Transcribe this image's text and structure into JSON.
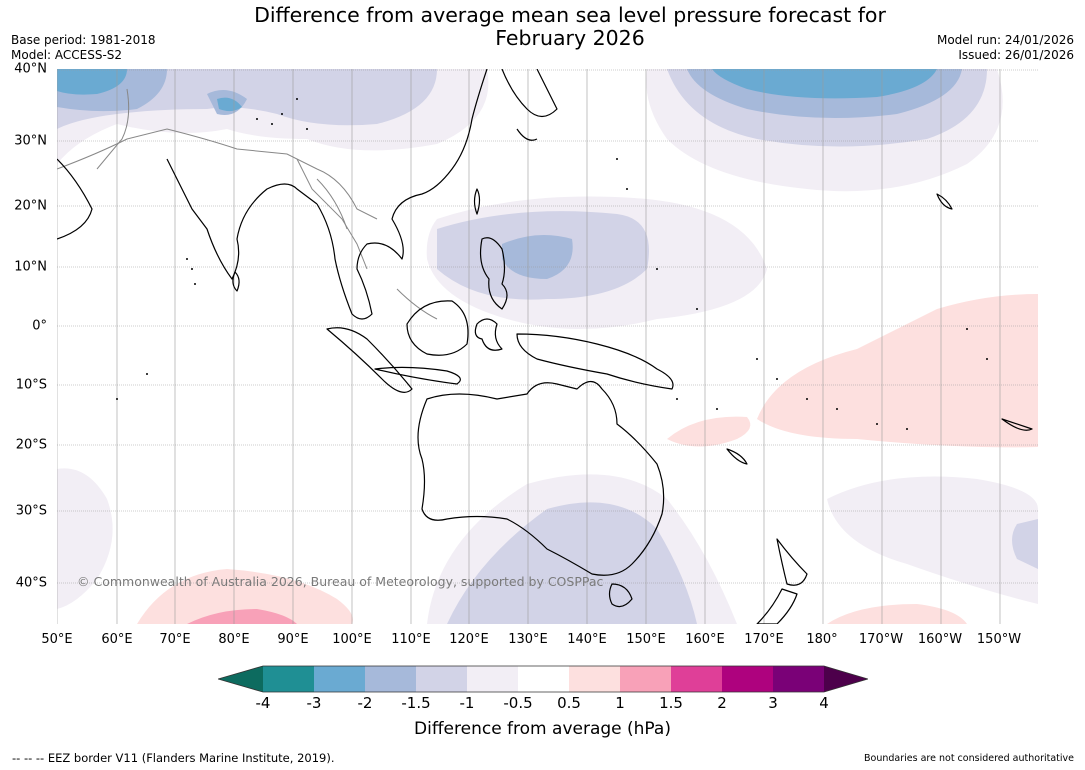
{
  "title": {
    "line1": "Difference from average mean sea level pressure forecast for",
    "line2": "February 2026"
  },
  "meta": {
    "base_period": "Base period: 1981-2018",
    "model": "Model: ACCESS-S2",
    "model_run": "Model run: 24/01/2026",
    "issued": "Issued: 26/01/2026"
  },
  "map": {
    "lat_labels": [
      "40°N",
      "30°N",
      "20°N",
      "10°N",
      "0°",
      "10°S",
      "20°S",
      "30°S",
      "40°S"
    ],
    "lon_labels": [
      "50°E",
      "60°E",
      "70°E",
      "80°E",
      "90°E",
      "100°E",
      "110°E",
      "120°E",
      "130°E",
      "140°E",
      "150°E",
      "160°E",
      "170°E",
      "180°",
      "170°W",
      "160°W",
      "150°W"
    ],
    "copyright": "© Commonwealth of Australia 2026, Bureau of Meteorology, supported by COSPPac",
    "land_outline_color": "#000000",
    "country_border_color": "#888888"
  },
  "colorbar": {
    "tick_labels": [
      "-4",
      "-3",
      "-2",
      "-1.5",
      "-1",
      "-0.5",
      "0.5",
      "1",
      "1.5",
      "2",
      "3",
      "4"
    ],
    "colors": {
      "below_min": "#0d6b5f",
      "bins": [
        "#1f8f94",
        "#6aaad2",
        "#a6b9da",
        "#d2d3e7",
        "#f2eef5",
        "#ffffff",
        "#fde0df",
        "#f8a1b8",
        "#df3f98",
        "#ae027e",
        "#7a0177"
      ],
      "above_max": "#4d004b"
    },
    "title": "Difference from average (hPa)"
  },
  "footer": {
    "eez": "--  --  -- EEZ border V11 (Flanders Marine Institute, 2019).",
    "boundaries": "Boundaries are not considered authoritative"
  }
}
